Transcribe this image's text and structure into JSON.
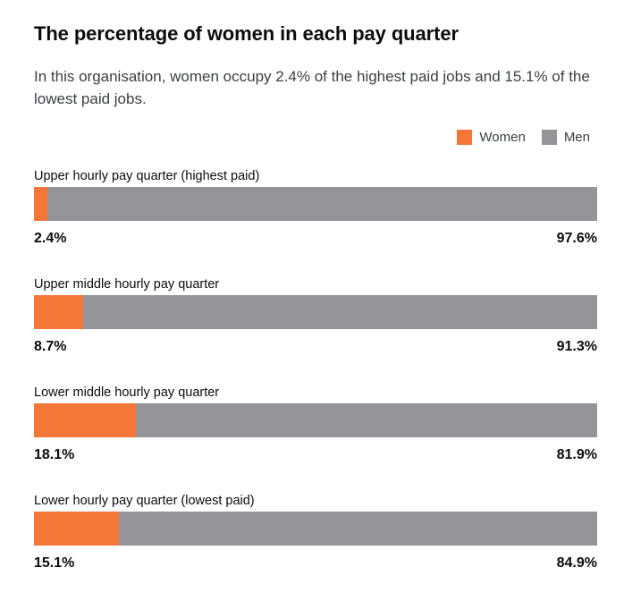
{
  "title": "The percentage of women in each pay quarter",
  "subtitle": "In this organisation, women occupy 2.4% of the highest paid jobs and 15.1% of the lowest paid jobs.",
  "legend": {
    "women": "Women",
    "men": "Men"
  },
  "colors": {
    "women": "#f47738",
    "men": "#939598"
  },
  "chart_data": {
    "type": "bar",
    "orientation": "horizontal-stacked-100",
    "title": "The percentage of women in each pay quarter",
    "categories": [
      "Upper hourly pay quarter (highest paid)",
      "Upper middle hourly pay quarter",
      "Lower middle hourly pay quarter",
      "Lower hourly pay quarter (lowest paid)"
    ],
    "series": [
      {
        "name": "Women",
        "values": [
          2.4,
          8.7,
          18.1,
          15.1
        ]
      },
      {
        "name": "Men",
        "values": [
          97.6,
          91.3,
          81.9,
          84.9
        ]
      }
    ],
    "women_labels": [
      "2.4%",
      "8.7%",
      "18.1%",
      "15.1%"
    ],
    "men_labels": [
      "97.6%",
      "91.3%",
      "81.9%",
      "84.9%"
    ],
    "xlim": [
      0,
      100
    ],
    "legend_position": "top-right"
  }
}
